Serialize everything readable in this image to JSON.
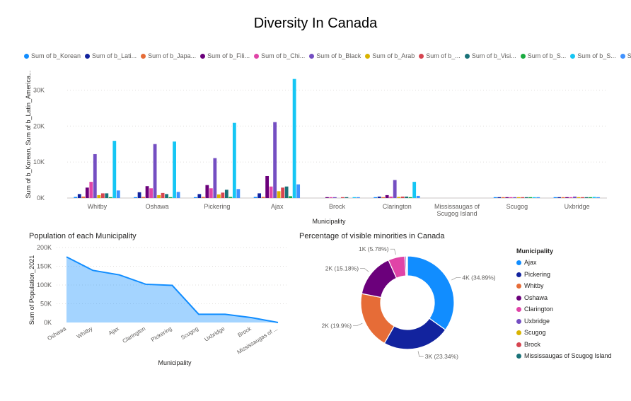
{
  "page": {
    "title": "Diversity In Canada"
  },
  "chart_data": [
    {
      "type": "bar",
      "title": "",
      "xlabel": "Municipality",
      "ylabel": "Sum of b_Korean, Sum of b_Latin_America...",
      "ylim": [
        0,
        35000
      ],
      "yticks": [
        "0K",
        "10K",
        "20K",
        "30K"
      ],
      "grid": true,
      "legend_position": "top",
      "categories": [
        "Whitby",
        "Oshawa",
        "Pickering",
        "Ajax",
        "Brock",
        "Clarington",
        "Mississaugas of Scugog Island",
        "Scugog",
        "Uxbridge"
      ],
      "series": [
        {
          "name": "Sum of b_Korean",
          "color": "#118DFF",
          "values": [
            300,
            200,
            200,
            300,
            0,
            100,
            0,
            20,
            30
          ]
        },
        {
          "name": "Sum of b_Lati...",
          "color": "#12239E",
          "values": [
            1100,
            1600,
            1100,
            1300,
            0,
            400,
            0,
            20,
            30
          ]
        },
        {
          "name": "Sum of b_Japa...",
          "color": "#E66C37",
          "values": [
            400,
            300,
            300,
            300,
            0,
            100,
            0,
            20,
            30
          ]
        },
        {
          "name": "Sum of b_Fili...",
          "color": "#6B007B",
          "values": [
            2900,
            3300,
            3600,
            6100,
            50,
            800,
            0,
            50,
            100
          ]
        },
        {
          "name": "Sum of b_Chi...",
          "color": "#E044A7",
          "values": [
            4500,
            2700,
            2700,
            3200,
            30,
            400,
            0,
            50,
            150
          ]
        },
        {
          "name": "Sum of b_Black",
          "color": "#744EC2",
          "values": [
            12200,
            15000,
            11100,
            21100,
            80,
            5000,
            0,
            100,
            400
          ]
        },
        {
          "name": "Sum of b_Arab",
          "color": "#D9B300",
          "values": [
            800,
            800,
            1000,
            1900,
            0,
            300,
            0,
            20,
            60
          ]
        },
        {
          "name": "Sum of b_...",
          "color": "#D64550",
          "values": [
            1300,
            1400,
            1500,
            2900,
            20,
            400,
            0,
            40,
            80
          ]
        },
        {
          "name": "Sum of b_Visi...",
          "color": "#197278",
          "values": [
            1300,
            1100,
            2300,
            3200,
            20,
            400,
            0,
            40,
            80
          ]
        },
        {
          "name": "Sum of b_S...",
          "color": "#1AAB40",
          "values": [
            200,
            200,
            300,
            500,
            0,
            50,
            0,
            20,
            30
          ]
        },
        {
          "name": "Sum of b_S...",
          "color": "#15C6F4",
          "values": [
            15900,
            15700,
            20900,
            33100,
            100,
            4500,
            0,
            200,
            300
          ]
        },
        {
          "name": "Sum of b_...",
          "color": "#4092FF",
          "values": [
            2100,
            1700,
            2500,
            3800,
            30,
            600,
            0,
            30,
            60
          ]
        }
      ]
    },
    {
      "type": "area",
      "title": "Population of each Municipality",
      "xlabel": "Municipality",
      "ylabel": "Sum of Population_2021",
      "ylim": [
        0,
        200000
      ],
      "yticks": [
        "0K",
        "50K",
        "100K",
        "150K",
        "200K"
      ],
      "grid": true,
      "categories": [
        "Oshawa",
        "Whitby",
        "Ajax",
        "Clarington",
        "Pickering",
        "Scugog",
        "Uxbridge",
        "Brock",
        "Mississaugas of ..."
      ],
      "values": [
        175000,
        139000,
        127000,
        102000,
        99000,
        22000,
        22000,
        13000,
        0
      ],
      "color": "#118DFF"
    },
    {
      "type": "pie",
      "title": "Percentage of visible minorities in Canada",
      "legend_title": "Municipality",
      "legend_position": "right",
      "labels": [
        "Ajax",
        "Pickering",
        "Whitby",
        "Oshawa",
        "Clarington",
        "Uxbridge",
        "Scugog",
        "Brock",
        "Mississaugas of Scugog Island"
      ],
      "colors": [
        "#118DFF",
        "#12239E",
        "#E66C37",
        "#6B007B",
        "#E044A7",
        "#744EC2",
        "#D9B300",
        "#D64550",
        "#197278"
      ],
      "values": [
        34.89,
        23.34,
        19.9,
        15.18,
        5.78,
        0.5,
        0.2,
        0.15,
        0.06
      ],
      "data_labels": [
        "4K (34.89%)",
        "3K (23.34%)",
        "2K (19.9%)",
        "2K (15.18%)",
        "1K (5.78%)",
        "",
        "",
        "",
        ""
      ]
    }
  ]
}
